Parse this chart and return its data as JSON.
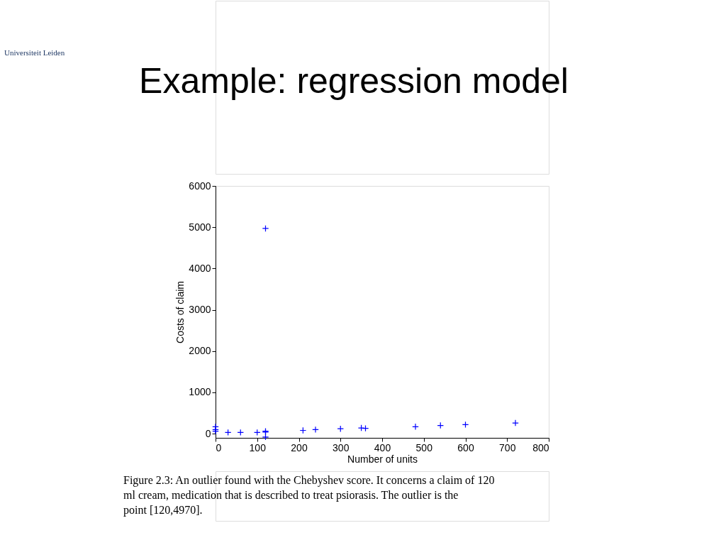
{
  "chart_data": {
    "type": "scatter",
    "title": "Example: regression model",
    "xlabel": "Number of units",
    "ylabel": "Costs of claim",
    "x": [
      0,
      0,
      0,
      30,
      60,
      100,
      120,
      120,
      120,
      120,
      210,
      240,
      300,
      350,
      360,
      480,
      540,
      600,
      720
    ],
    "series": [
      {
        "color": "#0000ff",
        "values": [
          170,
          60,
          100,
          30,
          30,
          30,
          60,
          40,
          -80,
          4970,
          80,
          100,
          120,
          140,
          130,
          170,
          200,
          220,
          260
        ]
      }
    ],
    "xlim": [
      0,
      800
    ],
    "xticks": [
      0,
      100,
      200,
      300,
      400,
      500,
      600,
      700,
      800
    ],
    "ylim": [
      -100,
      6000
    ],
    "yticks": [
      0,
      {
        "value": 1000,
        "label": "1000"
      },
      {
        "value": 2000,
        "label": "2000"
      },
      {
        "value": 3000,
        "label": "3000"
      },
      {
        "value": 4000,
        "label": "4000"
      },
      {
        "value": 5000,
        "label": "5000"
      },
      {
        "value": 6000,
        "label": "6000"
      }
    ],
    "grid": false,
    "marker": "cross",
    "annotations": [
      "Universiteit Leiden",
      "Figure 2.3: An outlier found with the Chebyshev score. It concerns a claim of 120",
      "ml cream, medication that is described to treat psiorasis. The outlier is the",
      "point [120,4970]."
    ]
  }
}
